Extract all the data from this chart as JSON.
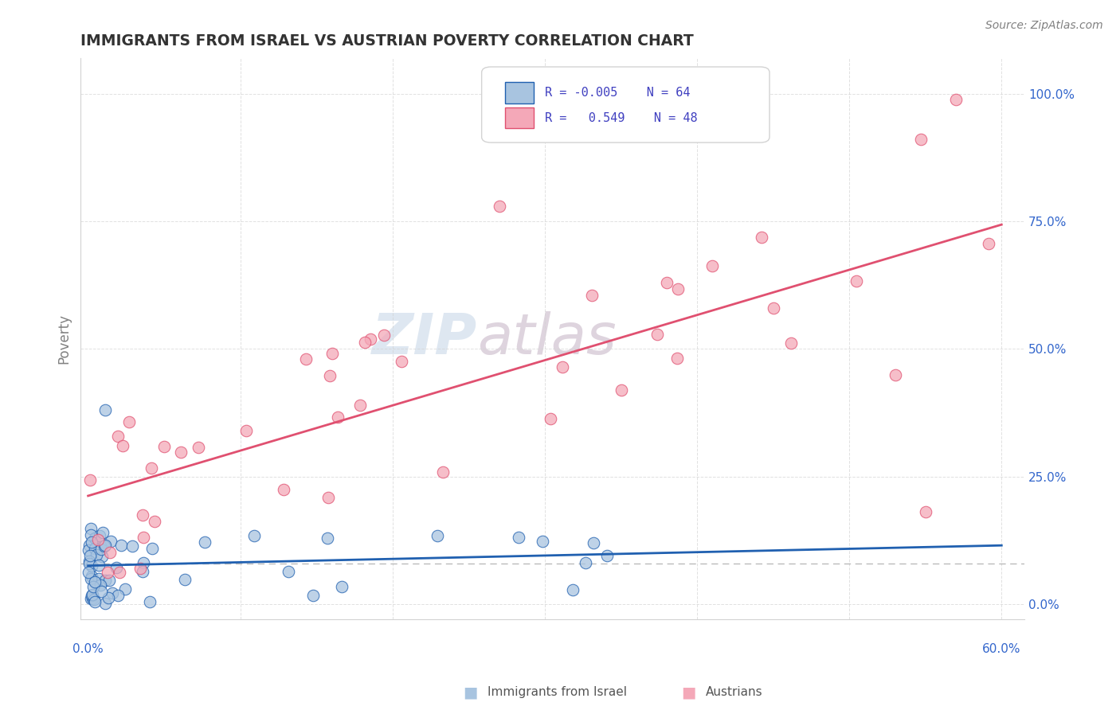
{
  "title": "IMMIGRANTS FROM ISRAEL VS AUSTRIAN POVERTY CORRELATION CHART",
  "source": "Source: ZipAtlas.com",
  "ylabel": "Poverty",
  "xlim": [
    0.0,
    0.6
  ],
  "ylim": [
    -0.03,
    1.05
  ],
  "legend_r_israel": "-0.005",
  "legend_n_israel": "64",
  "legend_r_austrians": "0.549",
  "legend_n_austrians": "48",
  "color_israel": "#a8c4e0",
  "color_austrians": "#f4a8b8",
  "color_israel_line": "#2060b0",
  "color_austrians_line": "#e05070",
  "color_r_text": "#4040c0",
  "watermark_zip": "ZIP",
  "watermark_atlas": "atlas"
}
